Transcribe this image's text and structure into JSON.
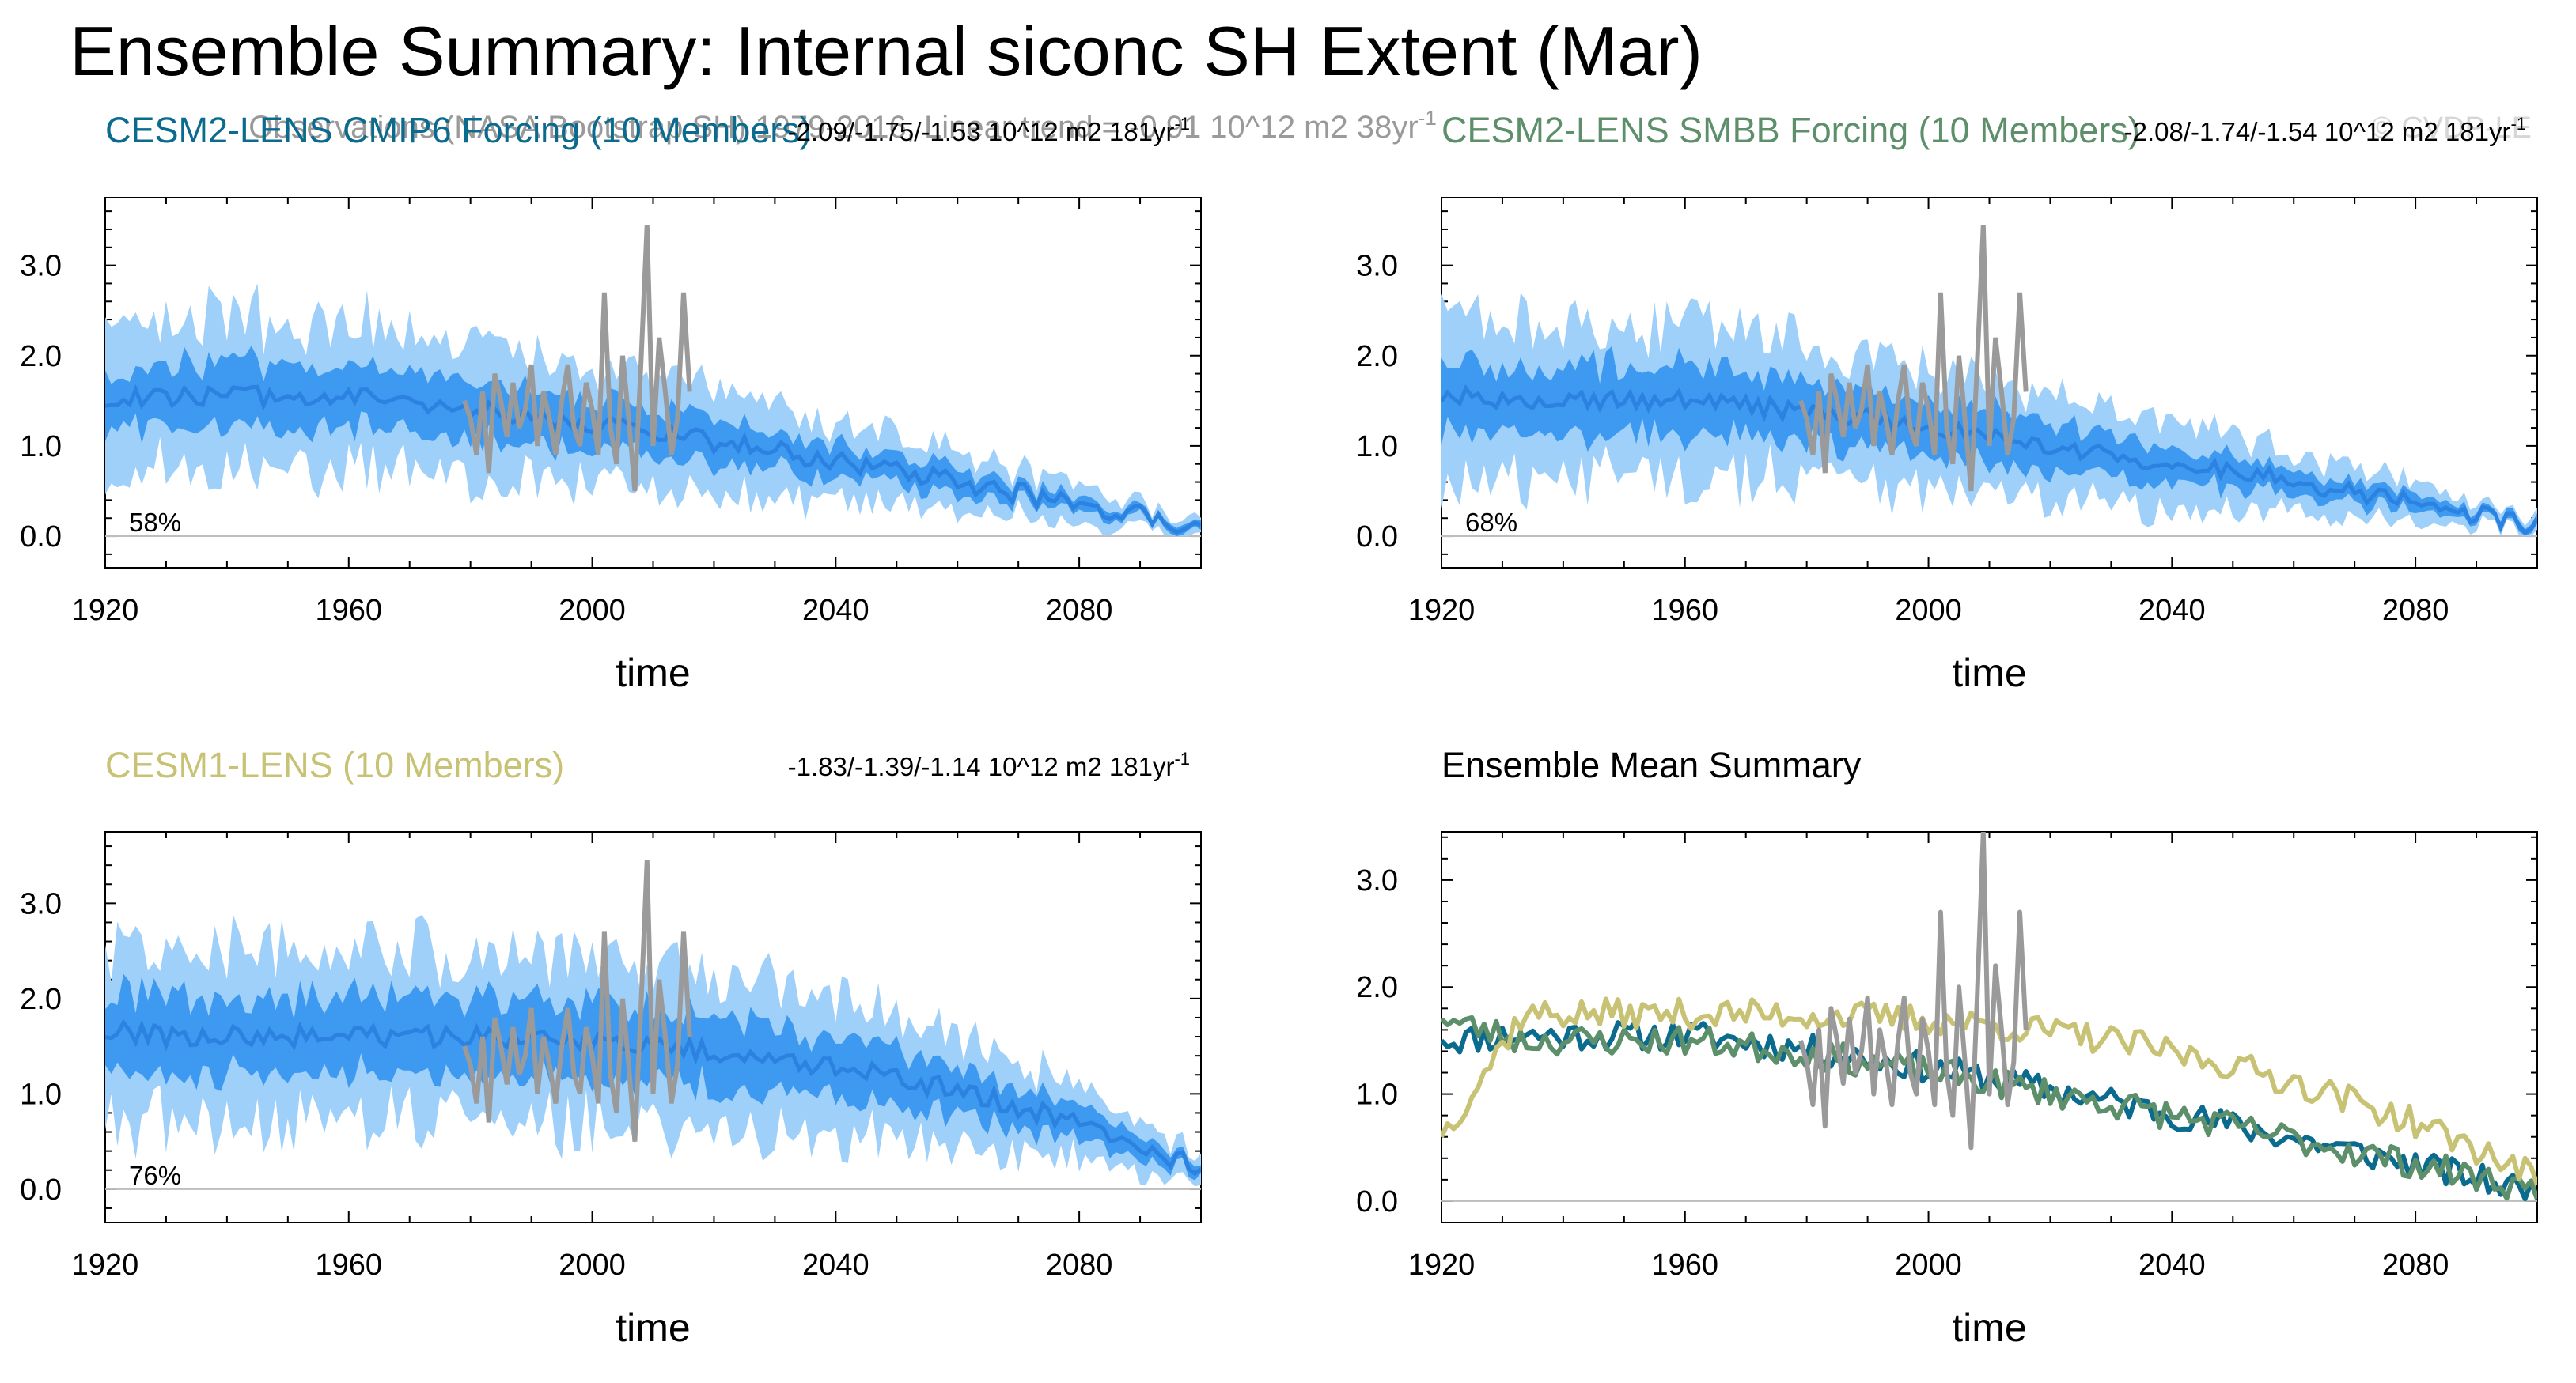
{
  "page": {
    "title": "Ensemble Summary: Internal siconc SH Extent (Mar)",
    "observations_note": "Observations (NASA Bootstrap SH) 1979-2016, Linear trend = -0.91 10^12 m2 38yr",
    "observations_note_exponent": "-1",
    "copyright": "© CVDP-LE"
  },
  "colors": {
    "cesm2_cmip6": "#0b6b8f",
    "cesm2_smbb": "#5d8f6b",
    "cesm1": "#c8c275",
    "observations": "#9a9a9a",
    "spread_outer": "#9fd0fa",
    "spread_inner": "#3d9af0",
    "ensemble_mean": "#2b82e0"
  },
  "chart_data": [
    {
      "id": "cesm2-cmip6",
      "type": "area",
      "title": "CESM2-LENS CMIP6 Forcing (10 Members)",
      "title_color": "#0b6b8f",
      "trend_text": "-2.09/-1.75/-1.53 10^12 m2 181yr",
      "trend_exponent": "-1",
      "percent_label": "58%",
      "xlabel": "time",
      "ylabel": "",
      "xlim": [
        1920,
        2100
      ],
      "ylim": [
        -0.35,
        3.75
      ],
      "xticks": [
        1920,
        1960,
        2000,
        2040,
        2080
      ],
      "yticks": [
        0.0,
        1.0,
        2.0,
        3.0
      ],
      "ytick_labels": [
        "0.0",
        "1.0",
        "2.0",
        "3.0"
      ],
      "series": [
        {
          "name": "Ensemble mean",
          "start": 1920,
          "mean_start": 1.5,
          "mean_plateau": 1.55,
          "plateau_until": 1960,
          "mean_end": 0.1,
          "decline_shape": 1.25,
          "inner_halfwidth": 0.35,
          "outer_halfwidth": 0.8,
          "seed": 11
        },
        {
          "name": "Observations (NASA Bootstrap SH)",
          "start": 1979,
          "values": [
            1.5,
            1.3,
            0.9,
            1.6,
            0.7,
            1.8,
            1.5,
            1.1,
            1.7,
            1.2,
            1.4,
            1.9,
            1.0,
            1.6,
            1.3,
            0.9,
            1.5,
            1.9,
            1.2,
            1.0,
            1.7,
            1.4,
            0.9,
            2.7,
            1.2,
            0.8,
            2.0,
            1.3,
            0.5,
            1.9,
            3.45,
            1.0,
            2.2,
            1.6,
            0.9,
            1.3,
            2.7,
            1.6
          ]
        }
      ]
    },
    {
      "id": "cesm2-smbb",
      "type": "area",
      "title": "CESM2-LENS SMBB Forcing (10 Members)",
      "title_color": "#5d8f6b",
      "trend_text": "-2.08/-1.74/-1.54 10^12 m2 181yr",
      "trend_exponent": "-1",
      "percent_label": "68%",
      "xlabel": "time",
      "ylabel": "",
      "xlim": [
        1920,
        2100
      ],
      "ylim": [
        -0.35,
        3.75
      ],
      "xticks": [
        1920,
        1960,
        2000,
        2040,
        2080
      ],
      "yticks": [
        0.0,
        1.0,
        2.0,
        3.0
      ],
      "ytick_labels": [
        "0.0",
        "1.0",
        "2.0",
        "3.0"
      ],
      "series": [
        {
          "name": "Ensemble mean",
          "start": 1920,
          "mean_start": 1.55,
          "mean_plateau": 1.5,
          "plateau_until": 1960,
          "mean_end": 0.12,
          "decline_shape": 1.25,
          "inner_halfwidth": 0.38,
          "outer_halfwidth": 0.8,
          "seed": 23
        },
        {
          "name": "Observations (NASA Bootstrap SH)",
          "start": 1979,
          "values": [
            1.5,
            1.3,
            0.9,
            1.6,
            0.7,
            1.8,
            1.5,
            1.1,
            1.7,
            1.2,
            1.4,
            1.9,
            1.0,
            1.6,
            1.3,
            0.9,
            1.5,
            1.9,
            1.2,
            1.0,
            1.7,
            1.4,
            0.9,
            2.7,
            1.2,
            0.8,
            2.0,
            1.3,
            0.5,
            1.9,
            3.45,
            1.0,
            2.2,
            1.6,
            0.9,
            1.3,
            2.7,
            1.6
          ]
        }
      ]
    },
    {
      "id": "cesm1",
      "type": "area",
      "title": "CESM1-LENS (10 Members)",
      "title_color": "#c8c275",
      "trend_text": "-1.83/-1.39/-1.14 10^12 m2 181yr",
      "trend_exponent": "-1",
      "percent_label": "76%",
      "xlabel": "time",
      "ylabel": "",
      "xlim": [
        1920,
        2100
      ],
      "ylim": [
        -0.35,
        3.75
      ],
      "xticks": [
        1920,
        1960,
        2000,
        2040,
        2080
      ],
      "yticks": [
        0.0,
        1.0,
        2.0,
        3.0
      ],
      "ytick_labels": [
        "0.0",
        "1.0",
        "2.0",
        "3.0"
      ],
      "series": [
        {
          "name": "Ensemble mean",
          "start": 1920,
          "mean_start": 1.65,
          "mean_plateau": 1.6,
          "plateau_until": 1960,
          "mean_end": 0.22,
          "decline_shape": 2.6,
          "inner_halfwidth": 0.4,
          "outer_halfwidth": 0.85,
          "seed": 37
        },
        {
          "name": "Observations (NASA Bootstrap SH)",
          "start": 1979,
          "values": [
            1.5,
            1.3,
            0.9,
            1.6,
            0.7,
            1.8,
            1.5,
            1.1,
            1.7,
            1.2,
            1.4,
            1.9,
            1.0,
            1.6,
            1.3,
            0.9,
            1.5,
            1.9,
            1.2,
            1.0,
            1.7,
            1.4,
            0.9,
            2.7,
            1.2,
            0.8,
            2.0,
            1.3,
            0.5,
            1.9,
            3.45,
            1.0,
            2.2,
            1.6,
            0.9,
            1.3,
            2.7,
            1.6
          ]
        }
      ]
    },
    {
      "id": "ensemble-mean-summary",
      "type": "line",
      "title": "Ensemble Mean Summary",
      "title_color": "#000000",
      "xlabel": "time",
      "ylabel": "",
      "xlim": [
        1920,
        2100
      ],
      "ylim": [
        -0.2,
        3.45
      ],
      "xticks": [
        1920,
        1960,
        2000,
        2040,
        2080
      ],
      "yticks": [
        0.0,
        1.0,
        2.0,
        3.0
      ],
      "ytick_labels": [
        "0.0",
        "1.0",
        "2.0",
        "3.0"
      ],
      "series": [
        {
          "name": "CESM2-LENS CMIP6 Forcing",
          "color": "#0b6b8f",
          "start": 1920,
          "mean_start": 1.5,
          "mean_plateau": 1.55,
          "plateau_until": 1960,
          "mean_end": 0.08,
          "decline_shape": 1.25,
          "seed": 11
        },
        {
          "name": "CESM2-LENS SMBB Forcing",
          "color": "#5d8f6b",
          "start": 1920,
          "mean_start": 1.7,
          "mean_plateau": 1.5,
          "plateau_until": 1960,
          "mean_end": 0.1,
          "decline_shape": 1.25,
          "seed": 23
        },
        {
          "name": "CESM1-LENS",
          "color": "#c8c275",
          "start": 1920,
          "mean_start": 0.6,
          "mean_plateau": 1.75,
          "plateau_until": 1960,
          "mean_end": 0.22,
          "decline_shape": 2.6,
          "seed": 37
        },
        {
          "name": "Observations (NASA Bootstrap SH)",
          "color": "#9a9a9a",
          "start": 1979,
          "values": [
            1.5,
            1.3,
            0.9,
            1.6,
            0.7,
            1.8,
            1.5,
            1.1,
            1.7,
            1.2,
            1.4,
            1.9,
            1.0,
            1.6,
            1.3,
            0.9,
            1.5,
            1.9,
            1.2,
            1.0,
            1.7,
            1.4,
            0.9,
            2.7,
            1.2,
            0.8,
            2.0,
            1.3,
            0.5,
            1.9,
            3.45,
            1.0,
            2.2,
            1.6,
            0.9,
            1.3,
            2.7,
            1.6
          ]
        }
      ]
    }
  ]
}
